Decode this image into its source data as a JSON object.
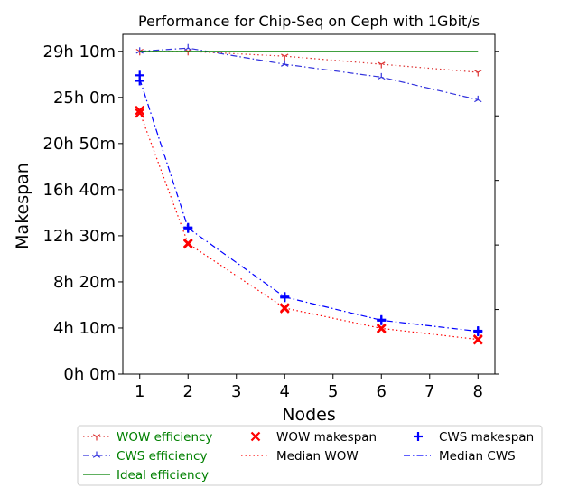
{
  "chart_data": {
    "type": "line",
    "title": "Performance for Chip-Seq on Ceph with 1Gbit/s",
    "xlabel": "Nodes",
    "ylabel": "Makespan",
    "x_ticks": [
      1,
      2,
      3,
      4,
      5,
      6,
      7,
      8
    ],
    "x_range": [
      0.65,
      8.35
    ],
    "y_ticks": [
      {
        "value": 0,
        "label": "0h 0m"
      },
      {
        "value": 250,
        "label": "4h 10m"
      },
      {
        "value": 500,
        "label": "8h 20m"
      },
      {
        "value": 750,
        "label": "12h 30m"
      },
      {
        "value": 1000,
        "label": "16h 40m"
      },
      {
        "value": 1250,
        "label": "20h 50m"
      },
      {
        "value": 1500,
        "label": "25h 0m"
      },
      {
        "value": 1750,
        "label": "29h 10m"
      }
    ],
    "y_range_minutes": [
      0,
      1842
    ],
    "right_axis": {
      "ticks": [
        0,
        0.2,
        0.4,
        0.6,
        0.8,
        1.0
      ],
      "range": [
        0,
        1.0526
      ],
      "labels_shown": false
    },
    "grid": false,
    "legend_position": "below",
    "series": [
      {
        "name": "WOW efficiency",
        "kind": "efficiency",
        "color": "#dd3333",
        "style": "dotted",
        "marker": "tri_down",
        "x": [
          1,
          2,
          4,
          6,
          8
        ],
        "y": [
          1.0,
          1.0,
          0.985,
          0.96,
          0.935
        ]
      },
      {
        "name": "CWS efficiency",
        "kind": "efficiency",
        "color": "#3333dd",
        "style": "dashdot",
        "marker": "tri_up",
        "x": [
          1,
          2,
          4,
          6,
          8
        ],
        "y": [
          1.0,
          1.01,
          0.96,
          0.92,
          0.85
        ]
      },
      {
        "name": "Ideal efficiency",
        "kind": "efficiency",
        "color": "#008000",
        "style": "solid",
        "marker": "none",
        "x": [
          1,
          8
        ],
        "y": [
          1.0,
          1.0
        ]
      },
      {
        "name": "WOW makespan",
        "kind": "makespan_points",
        "color": "#ff0000",
        "marker": "x",
        "points": [
          [
            1,
            1430
          ],
          [
            1,
            1415
          ],
          [
            2,
            710
          ],
          [
            2,
            705
          ],
          [
            4,
            355
          ],
          [
            4,
            360
          ],
          [
            6,
            245
          ],
          [
            6,
            250
          ],
          [
            8,
            185
          ],
          [
            8,
            190
          ]
        ]
      },
      {
        "name": "Median WOW",
        "kind": "makespan",
        "color": "#ff0000",
        "style": "dotted",
        "marker": "none",
        "x": [
          1,
          2,
          4,
          6,
          8
        ],
        "y": [
          1420,
          708,
          358,
          248,
          188
        ]
      },
      {
        "name": "CWS makespan",
        "kind": "makespan_points",
        "color": "#0000ff",
        "marker": "plus",
        "points": [
          [
            1,
            1620
          ],
          [
            1,
            1590
          ],
          [
            2,
            790
          ],
          [
            2,
            795
          ],
          [
            4,
            415
          ],
          [
            4,
            420
          ],
          [
            6,
            290
          ],
          [
            6,
            295
          ],
          [
            8,
            230
          ],
          [
            8,
            235
          ]
        ]
      },
      {
        "name": "Median CWS",
        "kind": "makespan",
        "color": "#0000ff",
        "style": "dashdot",
        "marker": "none",
        "x": [
          1,
          2,
          4,
          6,
          8
        ],
        "y": [
          1600,
          792,
          418,
          292,
          232
        ]
      }
    ]
  }
}
